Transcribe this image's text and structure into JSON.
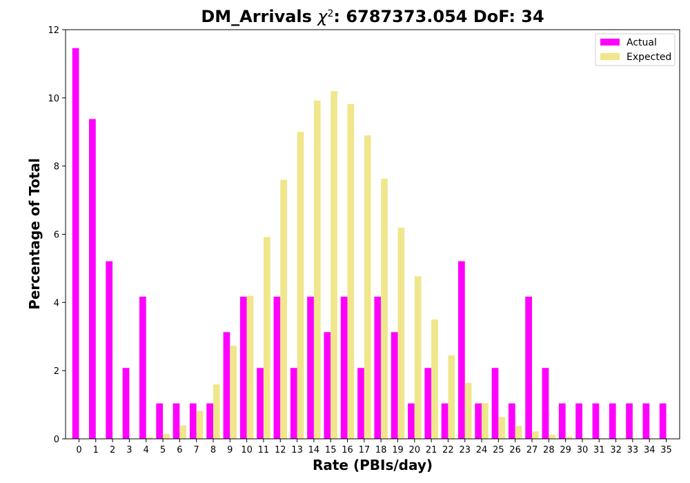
{
  "chart_data": {
    "type": "bar",
    "title_main": "DM_Arrivals ",
    "title_chi": "χ",
    "title_sup": "2",
    "title_rest": ": 6787373.054 DoF: 34",
    "xlabel": "Rate (PBIs/day)",
    "ylabel": "Percentage of Total",
    "ylim": [
      0,
      12
    ],
    "yticks": [
      0,
      2,
      4,
      6,
      8,
      10,
      12
    ],
    "grid": false,
    "legend_position": "top-right",
    "categories": [
      "0",
      "1",
      "2",
      "3",
      "4",
      "5",
      "6",
      "7",
      "8",
      "9",
      "10",
      "11",
      "12",
      "13",
      "14",
      "15",
      "16",
      "17",
      "18",
      "19",
      "20",
      "21",
      "22",
      "23",
      "24",
      "25",
      "26",
      "27",
      "28",
      "29",
      "30",
      "31",
      "32",
      "33",
      "34",
      "35"
    ],
    "series": [
      {
        "name": "Actual",
        "color": "#ff00ff",
        "values": [
          11.46,
          9.38,
          5.21,
          2.08,
          4.17,
          1.04,
          1.04,
          1.04,
          1.04,
          3.13,
          4.17,
          2.08,
          4.17,
          2.08,
          4.17,
          3.13,
          4.17,
          2.08,
          4.17,
          3.13,
          1.04,
          2.08,
          1.04,
          5.21,
          1.04,
          2.08,
          1.04,
          4.17,
          2.08,
          1.04,
          1.04,
          1.04,
          1.04,
          1.04,
          1.04,
          1.04
        ]
      },
      {
        "name": "Expected",
        "color": "#f0e68c",
        "values": [
          0,
          0,
          0,
          0,
          0.05,
          0.15,
          0.39,
          0.82,
          1.6,
          2.73,
          4.2,
          5.92,
          7.6,
          9.0,
          9.92,
          10.2,
          9.82,
          8.9,
          7.63,
          6.19,
          4.77,
          3.5,
          2.45,
          1.64,
          1.05,
          0.64,
          0.38,
          0.22,
          0.12,
          0.06,
          0.03,
          0.02,
          0.01,
          0,
          0,
          0
        ]
      }
    ]
  }
}
